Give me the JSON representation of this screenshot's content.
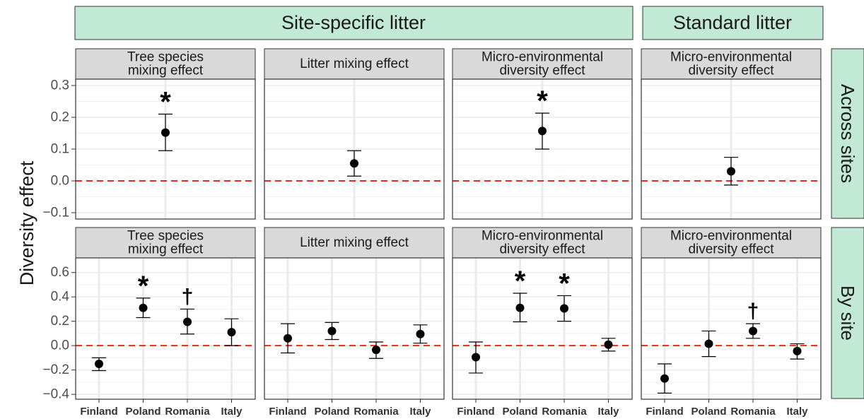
{
  "colors": {
    "group_strip": "#c2e8d6",
    "panel_strip": "#d9d9d9",
    "zero_line": "#e8291c",
    "point": "#000000",
    "grid": "#ebebeb"
  },
  "group_headers": [
    "Site-specific litter",
    "Standard litter"
  ],
  "row_labels": [
    "Across sites",
    "By site"
  ],
  "y_axis_title": "Diversity effect",
  "x_categories": [
    "Finland",
    "Poland",
    "Romania",
    "Italy"
  ],
  "panel_titles": [
    [
      "Tree species",
      "mixing effect"
    ],
    [
      "Litter mixing effect"
    ],
    [
      "Micro-environmental",
      "diversity effect"
    ],
    [
      "Micro-environmental",
      "diversity effect"
    ]
  ],
  "chart_data": [
    {
      "type": "scatter",
      "row": "Across sites",
      "ylim": [
        -0.12,
        0.32
      ],
      "yticks": [
        -0.1,
        0.0,
        0.1,
        0.2,
        0.3
      ],
      "yticklabels": [
        "−0.1",
        "0.0",
        "0.1",
        "0.2",
        "0.3"
      ],
      "panels": [
        {
          "title": "Tree species mixing effect",
          "points": [
            {
              "value": 0.152,
              "lo": 0.095,
              "hi": 0.21,
              "mark": "*"
            }
          ]
        },
        {
          "title": "Litter mixing effect",
          "points": [
            {
              "value": 0.055,
              "lo": 0.015,
              "hi": 0.095,
              "mark": ""
            }
          ]
        },
        {
          "title": "Micro-environmental diversity effect",
          "points": [
            {
              "value": 0.157,
              "lo": 0.1,
              "hi": 0.213,
              "mark": "*"
            }
          ]
        },
        {
          "title": "Micro-environmental diversity effect",
          "points": [
            {
              "value": 0.03,
              "lo": -0.013,
              "hi": 0.074,
              "mark": ""
            }
          ]
        }
      ]
    },
    {
      "type": "scatter",
      "row": "By site",
      "categories": [
        "Finland",
        "Poland",
        "Romania",
        "Italy"
      ],
      "ylim": [
        -0.44,
        0.72
      ],
      "yticks": [
        -0.4,
        -0.2,
        0.0,
        0.2,
        0.4,
        0.6
      ],
      "yticklabels": [
        "−0.4",
        "−0.2",
        "0.0",
        "0.2",
        "0.4",
        "0.6"
      ],
      "panels": [
        {
          "title": "Tree species mixing effect",
          "points": [
            {
              "x": "Finland",
              "value": -0.15,
              "lo": -0.205,
              "hi": -0.1,
              "mark": ""
            },
            {
              "x": "Poland",
              "value": 0.31,
              "lo": 0.23,
              "hi": 0.39,
              "mark": "*"
            },
            {
              "x": "Romania",
              "value": 0.195,
              "lo": 0.095,
              "hi": 0.3,
              "mark": "†"
            },
            {
              "x": "Italy",
              "value": 0.11,
              "lo": 0.0,
              "hi": 0.22,
              "mark": ""
            }
          ]
        },
        {
          "title": "Litter mixing effect",
          "points": [
            {
              "x": "Finland",
              "value": 0.06,
              "lo": -0.06,
              "hi": 0.18,
              "mark": ""
            },
            {
              "x": "Poland",
              "value": 0.12,
              "lo": 0.05,
              "hi": 0.19,
              "mark": ""
            },
            {
              "x": "Romania",
              "value": -0.035,
              "lo": -0.105,
              "hi": 0.03,
              "mark": ""
            },
            {
              "x": "Italy",
              "value": 0.095,
              "lo": 0.02,
              "hi": 0.17,
              "mark": ""
            }
          ]
        },
        {
          "title": "Micro-environmental diversity effect",
          "points": [
            {
              "x": "Finland",
              "value": -0.095,
              "lo": -0.225,
              "hi": 0.03,
              "mark": ""
            },
            {
              "x": "Poland",
              "value": 0.31,
              "lo": 0.195,
              "hi": 0.43,
              "mark": "*"
            },
            {
              "x": "Romania",
              "value": 0.305,
              "lo": 0.2,
              "hi": 0.41,
              "mark": "*"
            },
            {
              "x": "Italy",
              "value": 0.008,
              "lo": -0.045,
              "hi": 0.06,
              "mark": ""
            }
          ]
        },
        {
          "title": "Micro-environmental diversity effect",
          "points": [
            {
              "x": "Finland",
              "value": -0.27,
              "lo": -0.39,
              "hi": -0.15,
              "mark": ""
            },
            {
              "x": "Poland",
              "value": 0.015,
              "lo": -0.09,
              "hi": 0.12,
              "mark": ""
            },
            {
              "x": "Romania",
              "value": 0.12,
              "lo": 0.06,
              "hi": 0.18,
              "mark": "†"
            },
            {
              "x": "Italy",
              "value": -0.045,
              "lo": -0.11,
              "hi": 0.015,
              "mark": ""
            }
          ]
        }
      ]
    }
  ]
}
